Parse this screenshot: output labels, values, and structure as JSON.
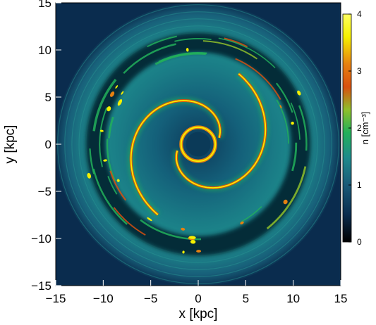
{
  "chart_data": {
    "type": "heatmap",
    "title": "",
    "xlabel": "x [kpc]",
    "ylabel": "y [kpc]",
    "xlim": [
      -15,
      15
    ],
    "ylim": [
      -15,
      15
    ],
    "x_ticks": [
      -15,
      -10,
      -5,
      0,
      5,
      10,
      15
    ],
    "y_ticks": [
      -15,
      -10,
      -5,
      0,
      5,
      10,
      15
    ],
    "x_tick_labels": [
      "−15",
      "−10",
      "−5",
      "0",
      "5",
      "10",
      "15"
    ],
    "y_tick_labels": [
      "−15",
      "−10",
      "−5",
      "0",
      "5",
      "10",
      "15"
    ],
    "colorbar": {
      "label": "n [cm⁻³]",
      "range": [
        0,
        4
      ],
      "ticks": [
        0,
        1,
        2,
        3,
        4
      ],
      "tick_labels": [
        "0",
        "1",
        "2",
        "3",
        "4"
      ],
      "colormap": [
        "#000000",
        "#0a2c4e",
        "#1a5a78",
        "#1f8a8c",
        "#22b05a",
        "#8fbf2a",
        "#d85010",
        "#e68010",
        "#f5f000",
        "#ffff60"
      ]
    },
    "features": {
      "central_void_radius_kpc": 1.3,
      "inner_ring_radius_kpc": 1.8,
      "spiral_arms": 2,
      "outer_ring_radius_kpc": 10.5,
      "disk_radius_kpc": 15
    },
    "colors": {
      "background": "#0a2c4e",
      "disk_field": "#1f8a8c",
      "void": "#000000",
      "dense": "#f5f000"
    }
  }
}
